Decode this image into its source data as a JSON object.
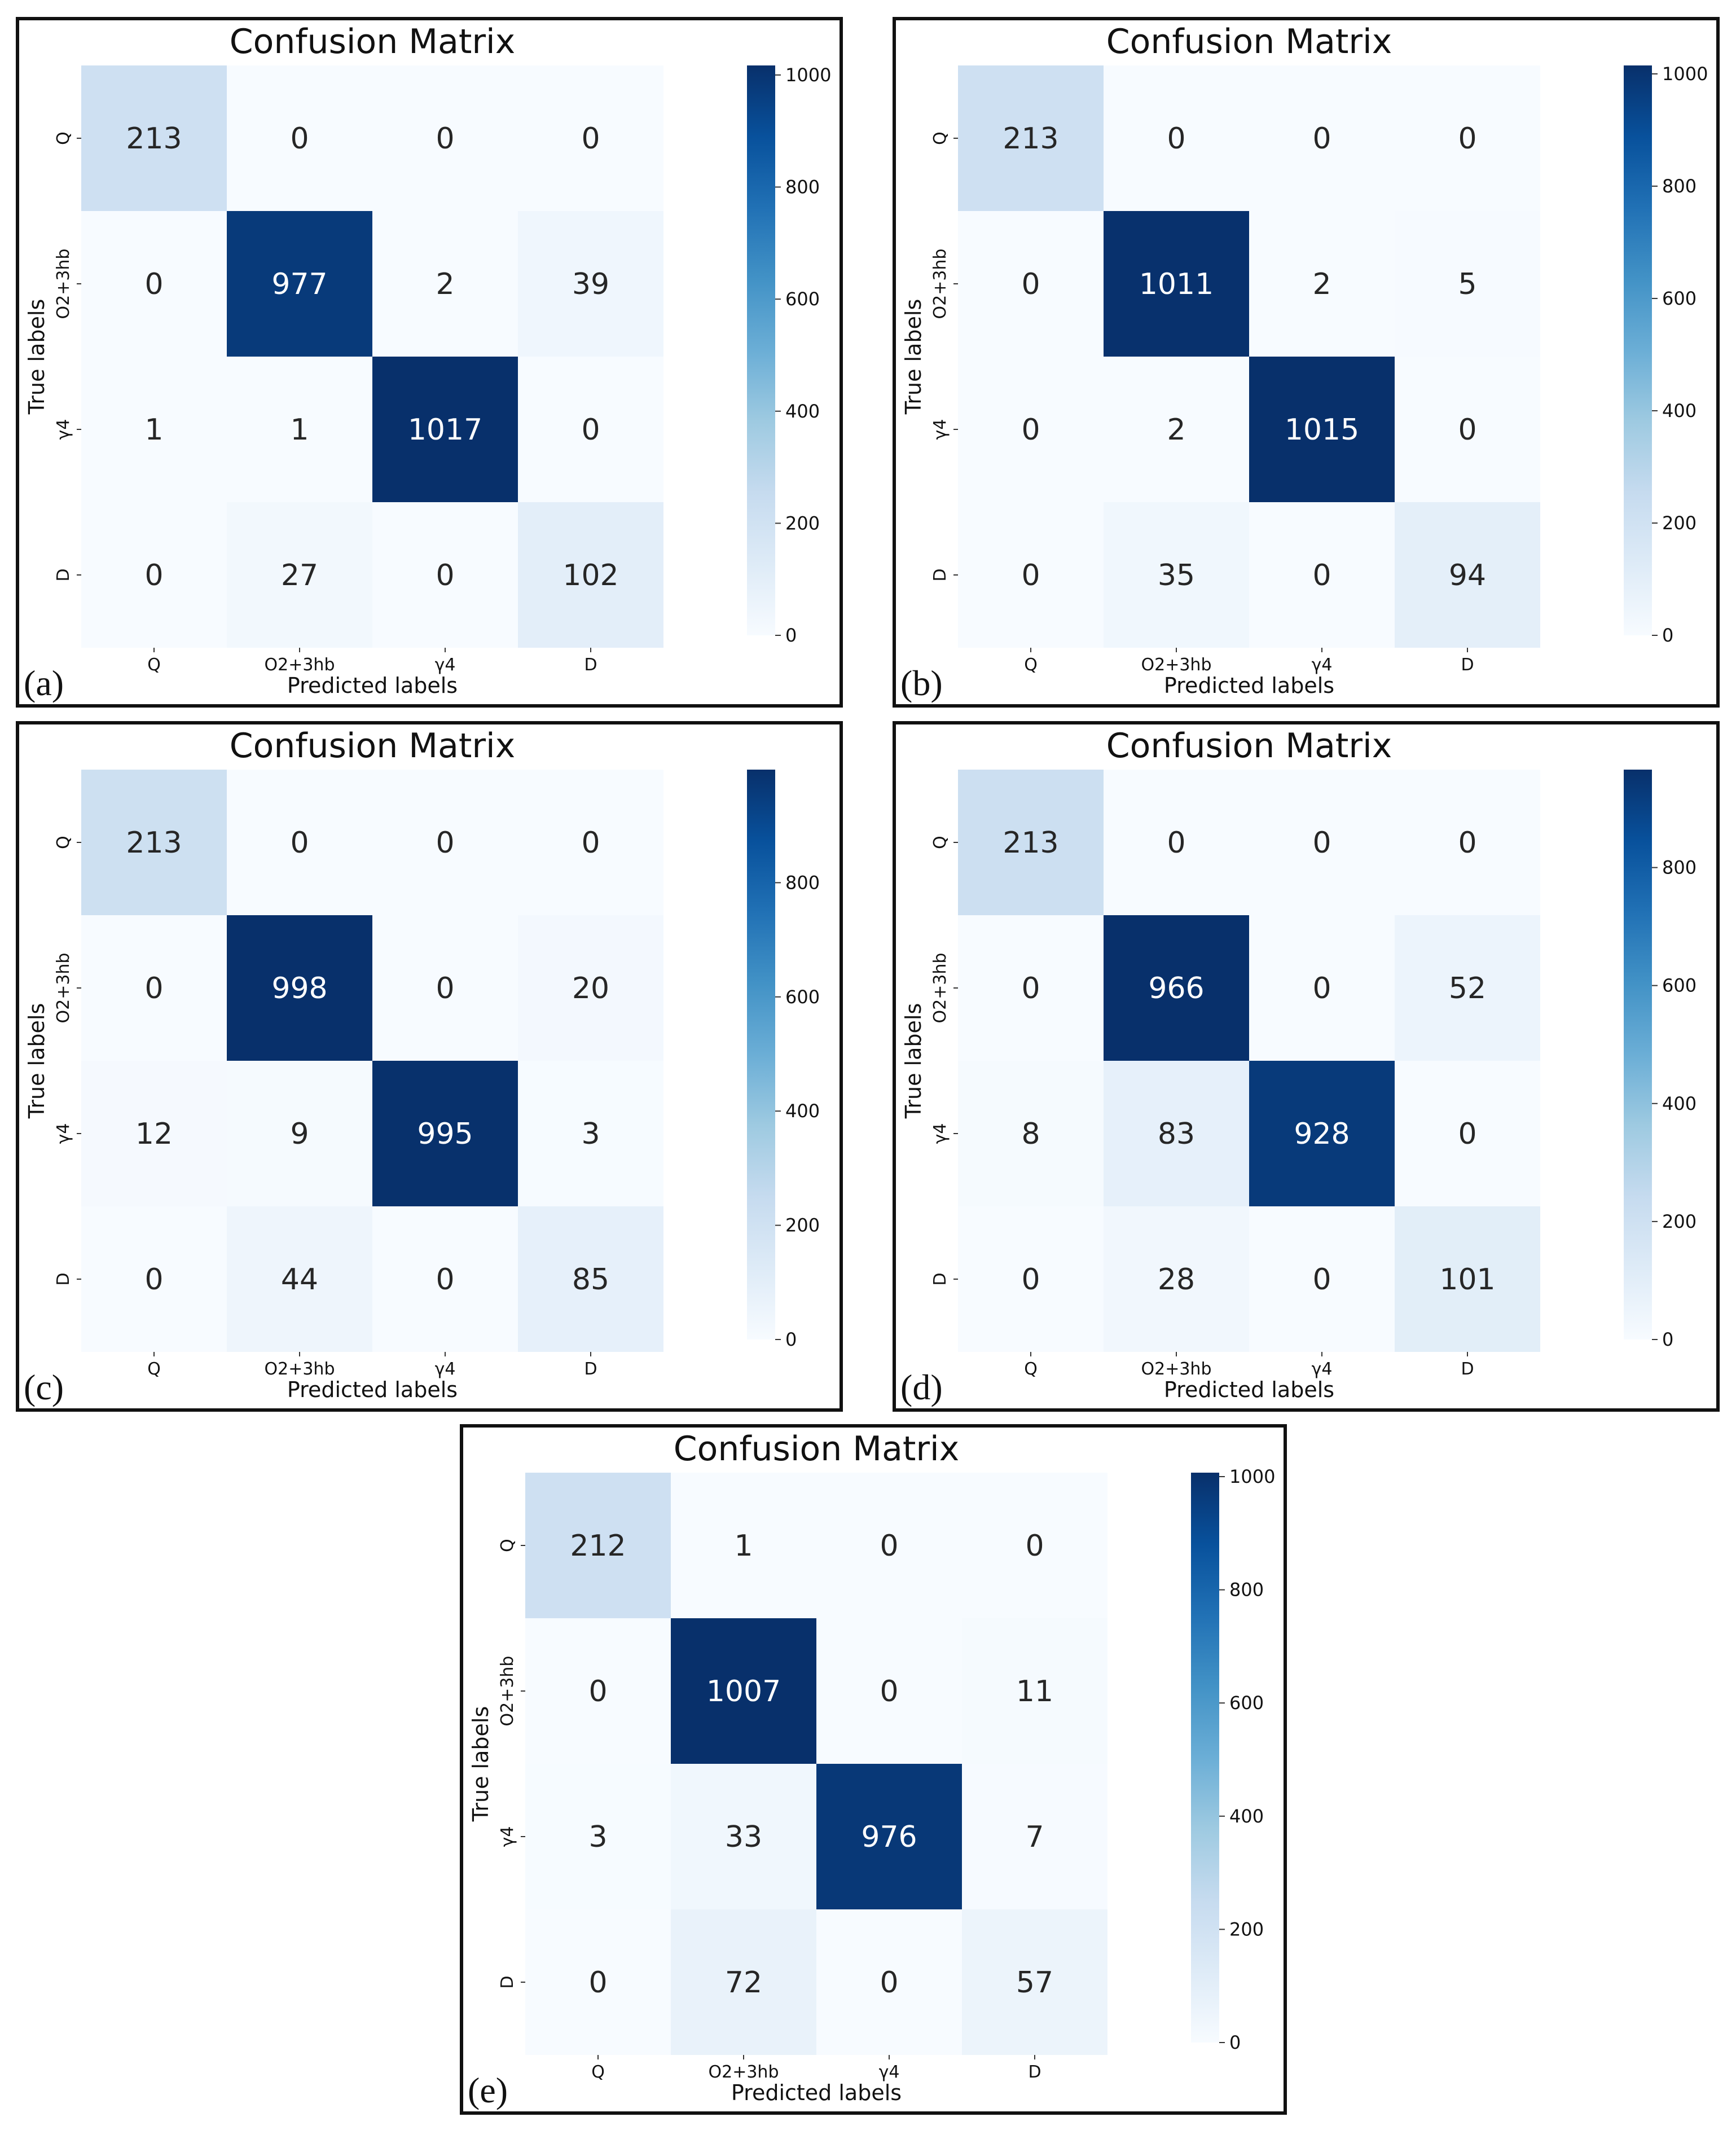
{
  "chart_data": [
    {
      "type": "heatmap",
      "panel_label": "(a)",
      "title": "Confusion Matrix",
      "xlabel": "Predicted labels",
      "ylabel": "True labels",
      "x_categories": [
        "Q",
        "O2+3hb",
        "γ4",
        "D"
      ],
      "y_categories": [
        "Q",
        "O2+3hb",
        "γ4",
        "D"
      ],
      "values": [
        [
          213,
          0,
          0,
          0
        ],
        [
          0,
          977,
          2,
          39
        ],
        [
          1,
          1,
          1017,
          0
        ],
        [
          0,
          27,
          0,
          102
        ]
      ],
      "colorbar": {
        "min": 0,
        "max": 1017,
        "ticks": [
          "0",
          "200",
          "400",
          "600",
          "800",
          "1000"
        ],
        "tick_values": [
          0,
          200,
          400,
          600,
          800,
          1000
        ]
      },
      "colormap": "Blues"
    },
    {
      "type": "heatmap",
      "panel_label": "(b)",
      "title": "Confusion Matrix",
      "xlabel": "Predicted labels",
      "ylabel": "True labels",
      "x_categories": [
        "Q",
        "O2+3hb",
        "γ4",
        "D"
      ],
      "y_categories": [
        "Q",
        "O2+3hb",
        "γ4",
        "D"
      ],
      "values": [
        [
          213,
          0,
          0,
          0
        ],
        [
          0,
          1011,
          2,
          5
        ],
        [
          0,
          2,
          1015,
          0
        ],
        [
          0,
          35,
          0,
          94
        ]
      ],
      "colorbar": {
        "min": 0,
        "max": 1015,
        "ticks": [
          "0",
          "200",
          "400",
          "600",
          "800",
          "1000"
        ],
        "tick_values": [
          0,
          200,
          400,
          600,
          800,
          1000
        ]
      },
      "colormap": "Blues"
    },
    {
      "type": "heatmap",
      "panel_label": "(c)",
      "title": "Confusion Matrix",
      "xlabel": "Predicted labels",
      "ylabel": "True labels",
      "x_categories": [
        "Q",
        "O2+3hb",
        "γ4",
        "D"
      ],
      "y_categories": [
        "Q",
        "O2+3hb",
        "γ4",
        "D"
      ],
      "values": [
        [
          213,
          0,
          0,
          0
        ],
        [
          0,
          998,
          0,
          20
        ],
        [
          12,
          9,
          995,
          3
        ],
        [
          0,
          44,
          0,
          85
        ]
      ],
      "colorbar": {
        "min": 0,
        "max": 998,
        "ticks": [
          "0",
          "200",
          "400",
          "600",
          "800"
        ],
        "tick_values": [
          0,
          200,
          400,
          600,
          800
        ]
      },
      "colormap": "Blues"
    },
    {
      "type": "heatmap",
      "panel_label": "(d)",
      "title": "Confusion Matrix",
      "xlabel": "Predicted labels",
      "ylabel": "True labels",
      "x_categories": [
        "Q",
        "O2+3hb",
        "γ4",
        "D"
      ],
      "y_categories": [
        "Q",
        "O2+3hb",
        "γ4",
        "D"
      ],
      "values": [
        [
          213,
          0,
          0,
          0
        ],
        [
          0,
          966,
          0,
          52
        ],
        [
          8,
          83,
          928,
          0
        ],
        [
          0,
          28,
          0,
          101
        ]
      ],
      "colorbar": {
        "min": 0,
        "max": 966,
        "ticks": [
          "0",
          "200",
          "400",
          "600",
          "800"
        ],
        "tick_values": [
          0,
          200,
          400,
          600,
          800
        ]
      },
      "colormap": "Blues"
    },
    {
      "type": "heatmap",
      "panel_label": "(e)",
      "title": "Confusion Matrix",
      "xlabel": "Predicted labels",
      "ylabel": "True labels",
      "x_categories": [
        "Q",
        "O2+3hb",
        "γ4",
        "D"
      ],
      "y_categories": [
        "Q",
        "O2+3hb",
        "γ4",
        "D"
      ],
      "values": [
        [
          212,
          1,
          0,
          0
        ],
        [
          0,
          1007,
          0,
          11
        ],
        [
          3,
          33,
          976,
          7
        ],
        [
          0,
          72,
          0,
          57
        ]
      ],
      "colorbar": {
        "min": 0,
        "max": 1007,
        "ticks": [
          "0",
          "200",
          "400",
          "600",
          "800",
          "1000"
        ],
        "tick_values": [
          0,
          200,
          400,
          600,
          800,
          1000
        ]
      },
      "colormap": "Blues"
    }
  ]
}
